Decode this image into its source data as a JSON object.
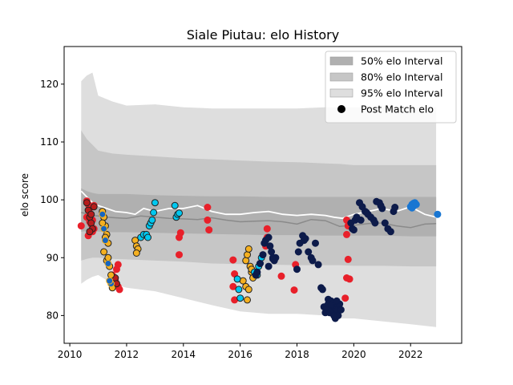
{
  "chart_data": {
    "type": "scatter",
    "title": "Siale Piutau: elo History",
    "xlabel": "",
    "ylabel": "elo score",
    "xlim": [
      2009.8,
      2023.8
    ],
    "ylim": [
      75.2,
      126.5
    ],
    "x_ticks": [
      2010,
      2012,
      2014,
      2016,
      2018,
      2020,
      2022
    ],
    "y_ticks": [
      80,
      90,
      100,
      110,
      120
    ],
    "grid": false,
    "legend_position": "top-right",
    "legend": [
      {
        "label": "50% elo Interval",
        "swatch": "#b0b0b0"
      },
      {
        "label": "80% elo Interval",
        "swatch": "#c6c6c6"
      },
      {
        "label": "95% elo Interval",
        "swatch": "#dedede"
      },
      {
        "label": "Post Match elo",
        "swatch": "#000000"
      }
    ],
    "bands": {
      "x": [
        2010.4,
        2010.6,
        2010.8,
        2011.0,
        2011.5,
        2012.0,
        2013.0,
        2014.0,
        2015.0,
        2016.0,
        2017.0,
        2018.0,
        2019.0,
        2019.5,
        2020.0,
        2021.0,
        2022.0,
        2022.9
      ],
      "p95_low": [
        85.5,
        86.2,
        86.7,
        87.0,
        85.5,
        84.8,
        84.2,
        83.0,
        81.8,
        80.7,
        80.3,
        80.3,
        80.0,
        79.5,
        79.5,
        79.0,
        78.5,
        78.0
      ],
      "p95_high": [
        120.5,
        121.5,
        122.0,
        118.0,
        117.0,
        116.3,
        116.5,
        116.0,
        115.8,
        115.8,
        115.8,
        115.8,
        116.0,
        116.0,
        116.0,
        116.0,
        116.0,
        116.0
      ],
      "p80_low": [
        89.5,
        89.8,
        90.0,
        90.0,
        89.8,
        89.7,
        89.5,
        89.3,
        89.0,
        88.9,
        88.8,
        88.7,
        88.7,
        88.7,
        88.6,
        88.6,
        88.5,
        88.5
      ],
      "p80_high": [
        112.0,
        110.5,
        109.5,
        108.5,
        108.0,
        107.8,
        107.5,
        107.2,
        107.0,
        106.8,
        106.6,
        106.5,
        106.3,
        106.2,
        106.0,
        106.0,
        106.0,
        106.0
      ],
      "p50_low": [
        94.5,
        94.6,
        94.6,
        94.5,
        94.4,
        94.4,
        94.3,
        94.2,
        94.1,
        94.0,
        93.9,
        93.9,
        93.8,
        93.8,
        93.8,
        93.8,
        93.7,
        93.7
      ],
      "p50_high": [
        102.0,
        101.5,
        101.2,
        101.0,
        101.0,
        101.0,
        100.8,
        100.7,
        100.6,
        100.6,
        100.5,
        100.5,
        100.5,
        100.5,
        100.5,
        100.5,
        100.5,
        100.5
      ]
    },
    "median_line": {
      "x": [
        2010.4,
        2010.6,
        2010.8,
        2011.0,
        2011.3,
        2011.6,
        2012.0,
        2012.5,
        2013.0,
        2013.5,
        2014.0,
        2014.5,
        2015.0,
        2015.5,
        2016.0,
        2016.5,
        2017.0,
        2017.5,
        2018.0,
        2018.5,
        2019.0,
        2019.5,
        2020.0,
        2020.5,
        2021.0,
        2021.5,
        2022.0,
        2022.5,
        2022.9
      ],
      "y": [
        97.8,
        97.6,
        97.3,
        97.2,
        97.0,
        96.9,
        96.8,
        97.2,
        97.0,
        96.8,
        96.7,
        96.6,
        96.9,
        96.5,
        96.2,
        96.3,
        96.4,
        96.2,
        95.8,
        96.6,
        96.4,
        95.4,
        95.6,
        95.9,
        96.0,
        95.5,
        95.2,
        95.8,
        95.9
      ]
    },
    "white_line": {
      "x": [
        2010.4,
        2010.6,
        2010.8,
        2011.0,
        2011.3,
        2011.6,
        2012.0,
        2012.3,
        2012.6,
        2013.0,
        2013.5,
        2014.0,
        2014.5,
        2015.0,
        2015.5,
        2016.0,
        2016.5,
        2017.0,
        2017.5,
        2018.0,
        2018.5,
        2019.0,
        2019.3,
        2019.6,
        2020.0,
        2020.5,
        2021.0,
        2021.5,
        2022.0,
        2022.5,
        2022.9
      ],
      "y": [
        101.5,
        100.5,
        99.5,
        99.0,
        98.5,
        98.0,
        97.8,
        97.5,
        98.5,
        98.0,
        98.5,
        98.5,
        99.0,
        98.0,
        97.5,
        97.5,
        97.8,
        98.0,
        97.5,
        97.3,
        97.5,
        97.3,
        97.0,
        96.8,
        97.5,
        98.0,
        98.5,
        98.0,
        98.8,
        97.5,
        97.0
      ]
    },
    "series": [
      {
        "color": "#e8202a",
        "edge": "#e8202a",
        "x": [
          2010.4,
          2010.6,
          2010.65,
          2010.7,
          2010.75,
          2010.8,
          2010.85,
          2010.6,
          2010.7,
          2010.8,
          2010.65,
          2010.75,
          2010.85,
          2011.5,
          2011.6,
          2011.7,
          2011.75,
          2011.65,
          2011.7,
          2013.85,
          2013.9,
          2013.85,
          2014.85,
          2014.85,
          2014.9,
          2015.75,
          2015.8,
          2015.75,
          2015.8,
          2016.95,
          2016.95,
          2016.9,
          2017.45,
          2017.9,
          2017.95,
          2019.75,
          2019.8,
          2019.75,
          2019.8,
          2019.85,
          2019.7,
          2019.75
        ],
        "y": [
          95.5,
          99.8,
          99.2,
          98.5,
          97.5,
          96.5,
          95.0,
          97.0,
          96.2,
          94.5,
          93.8,
          95.8,
          99.0,
          87.0,
          86.0,
          85.0,
          84.5,
          88.0,
          88.8,
          93.5,
          94.3,
          90.5,
          98.7,
          96.5,
          94.8,
          89.6,
          87.2,
          85.0,
          82.7,
          95.0,
          93.5,
          92.0,
          86.8,
          84.4,
          88.8,
          96.5,
          95.5,
          94.0,
          89.7,
          86.3,
          83.0,
          86.5
        ]
      },
      {
        "color": "#b71c1c",
        "edge": "#222222",
        "x": [
          2010.6,
          2010.65,
          2010.7,
          2010.75,
          2010.8,
          2010.7,
          2010.75,
          2010.85,
          2011.6,
          2011.65
        ],
        "y": [
          99.5,
          98.2,
          97.0,
          96.0,
          95.0,
          94.5,
          97.5,
          98.8,
          86.5,
          85.5
        ]
      },
      {
        "color": "#f5b020",
        "edge": "#222222",
        "x": [
          2011.15,
          2011.2,
          2011.25,
          2011.3,
          2011.35,
          2011.2,
          2011.3,
          2011.4,
          2011.45,
          2011.15,
          2011.25,
          2011.35,
          2011.5,
          2012.3,
          2012.35,
          2012.4,
          2012.35,
          2016.2,
          2016.25,
          2016.3,
          2016.35,
          2016.4,
          2016.45,
          2016.2,
          2016.3,
          2016.25,
          2016.1,
          2016.4
        ],
        "y": [
          98.0,
          97.0,
          95.5,
          94.0,
          92.5,
          91.0,
          89.5,
          88.5,
          87.0,
          96.0,
          93.5,
          90.0,
          84.8,
          93.0,
          92.0,
          91.5,
          90.8,
          89.5,
          90.5,
          91.5,
          88.5,
          87.5,
          86.5,
          85.0,
          84.5,
          82.7,
          86.0,
          88.0
        ]
      },
      {
        "color": "#1565c0",
        "edge": "#f5b020",
        "x": [
          2011.15,
          2011.25,
          2011.35,
          2011.45,
          2011.2,
          2011.4
        ],
        "y": [
          97.5,
          93.0,
          89.0,
          85.5,
          95.0,
          86.0
        ]
      },
      {
        "color": "#00c8f0",
        "edge": "#222222",
        "x": [
          2012.5,
          2012.6,
          2012.7,
          2012.75,
          2012.8,
          2012.85,
          2012.9,
          2012.95,
          2013.0,
          2013.7,
          2013.75,
          2013.8,
          2013.85,
          2015.9,
          2015.95,
          2016.0,
          2016.5,
          2016.6,
          2016.65,
          2016.7,
          2016.75
        ],
        "y": [
          93.5,
          94.0,
          94.0,
          93.5,
          95.5,
          96.0,
          96.5,
          97.8,
          99.5,
          99.0,
          97.0,
          97.5,
          97.7,
          86.3,
          84.5,
          83.0,
          87.5,
          87.0,
          88.5,
          89.0,
          90.0
        ]
      },
      {
        "color": "#0d1b4a",
        "edge": "#0d1b4a",
        "x": [
          2016.55,
          2016.6,
          2016.7,
          2016.8,
          2016.85,
          2016.9,
          2017.0,
          2017.05,
          2017.1,
          2017.15,
          2017.2,
          2017.25,
          2017.0,
          2017.15,
          2018.0,
          2018.05,
          2018.1,
          2018.2,
          2018.25,
          2018.3,
          2018.4,
          2018.5,
          2018.55,
          2018.65,
          2018.75,
          2018.85,
          2018.9,
          2018.95,
          2019.0,
          2019.05,
          2019.1,
          2019.15,
          2019.2,
          2019.25,
          2019.3,
          2019.35,
          2019.4,
          2019.45,
          2019.5,
          2019.55,
          2019.1,
          2019.2,
          2019.3,
          2019.4,
          2019.9,
          2019.95,
          2020.0,
          2020.05,
          2020.1,
          2020.2,
          2020.3,
          2020.4,
          2020.5,
          2020.6,
          2020.7,
          2020.75,
          2020.8,
          2020.9,
          2021.0,
          2021.1,
          2021.2,
          2021.3,
          2021.4,
          2021.45,
          2020.25,
          2020.45,
          2020.95
        ],
        "y": [
          87.0,
          87.5,
          89.0,
          90.5,
          92.5,
          93.0,
          93.5,
          92.0,
          91.0,
          90.0,
          89.5,
          90.0,
          88.5,
          89.8,
          88.0,
          91.0,
          92.5,
          93.8,
          93.0,
          93.3,
          91.0,
          90.0,
          89.5,
          92.5,
          88.8,
          84.8,
          84.5,
          81.5,
          80.5,
          81.5,
          82.8,
          80.5,
          82.5,
          81.0,
          81.5,
          79.5,
          81.0,
          80.0,
          82.0,
          81.0,
          82.0,
          81.8,
          80.0,
          82.5,
          96.0,
          95.0,
          94.8,
          96.5,
          97.0,
          99.5,
          98.8,
          98.0,
          97.5,
          97.0,
          96.5,
          96.0,
          99.7,
          99.5,
          98.5,
          96.0,
          95.0,
          94.5,
          98.0,
          98.7,
          96.5,
          97.8,
          99.0
        ]
      },
      {
        "color": "#1976d2",
        "edge": "#1976d2",
        "x": [
          2022.0,
          2022.05,
          2022.1,
          2022.15,
          2022.05,
          2022.1,
          2022.15,
          2022.2,
          2022.95
        ],
        "y": [
          98.8,
          99.2,
          99.4,
          99.3,
          98.6,
          98.9,
          99.5,
          99.2,
          97.5
        ]
      }
    ]
  }
}
